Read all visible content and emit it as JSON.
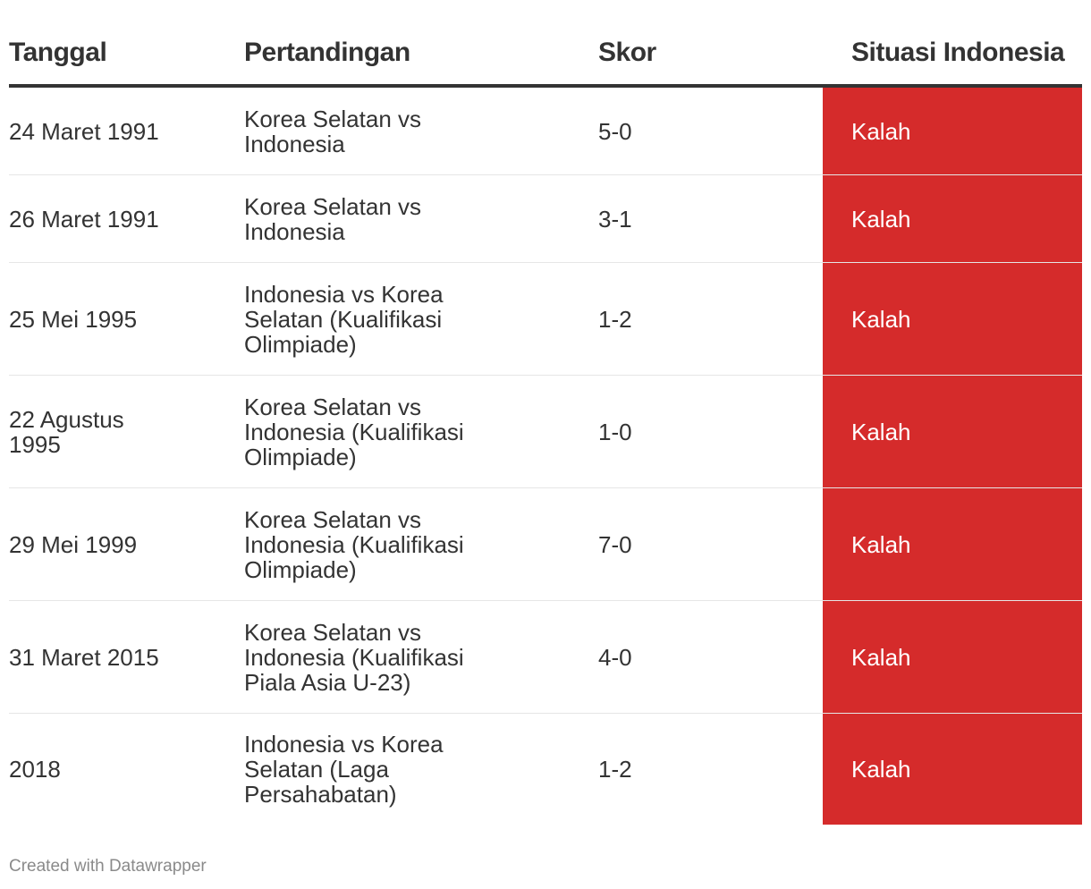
{
  "table": {
    "headers": {
      "date": "Tanggal",
      "match": "Pertandingan",
      "score": "Skor",
      "status": "Situasi Indonesia"
    },
    "status_color": "#d52b2b",
    "rows": [
      {
        "date": "24 Maret 1991",
        "match": "Korea Selatan vs Indonesia",
        "score": "5-0",
        "status": "Kalah"
      },
      {
        "date": "26 Maret 1991",
        "match": "Korea Selatan vs Indonesia",
        "score": "3-1",
        "status": "Kalah"
      },
      {
        "date": "25 Mei 1995",
        "match": "Indonesia vs Korea Selatan (Kualifikasi Olimpiade)",
        "score": "1-2",
        "status": "Kalah"
      },
      {
        "date": "22 Agustus 1995",
        "match": "Korea Selatan vs Indonesia (Kualifikasi Olimpiade)",
        "score": "1-0",
        "status": "Kalah"
      },
      {
        "date": "29 Mei 1999",
        "match": "Korea Selatan vs Indonesia (Kualifikasi Olimpiade)",
        "score": "7-0",
        "status": "Kalah"
      },
      {
        "date": "31 Maret 2015",
        "match": "Korea Selatan vs Indonesia (Kualifikasi Piala Asia U-23)",
        "score": "4-0",
        "status": "Kalah"
      },
      {
        "date": "2018",
        "match": "Indonesia vs Korea Selatan (Laga Persahabatan)",
        "score": "1-2",
        "status": "Kalah"
      }
    ]
  },
  "footer": {
    "credit": "Created with Datawrapper"
  }
}
